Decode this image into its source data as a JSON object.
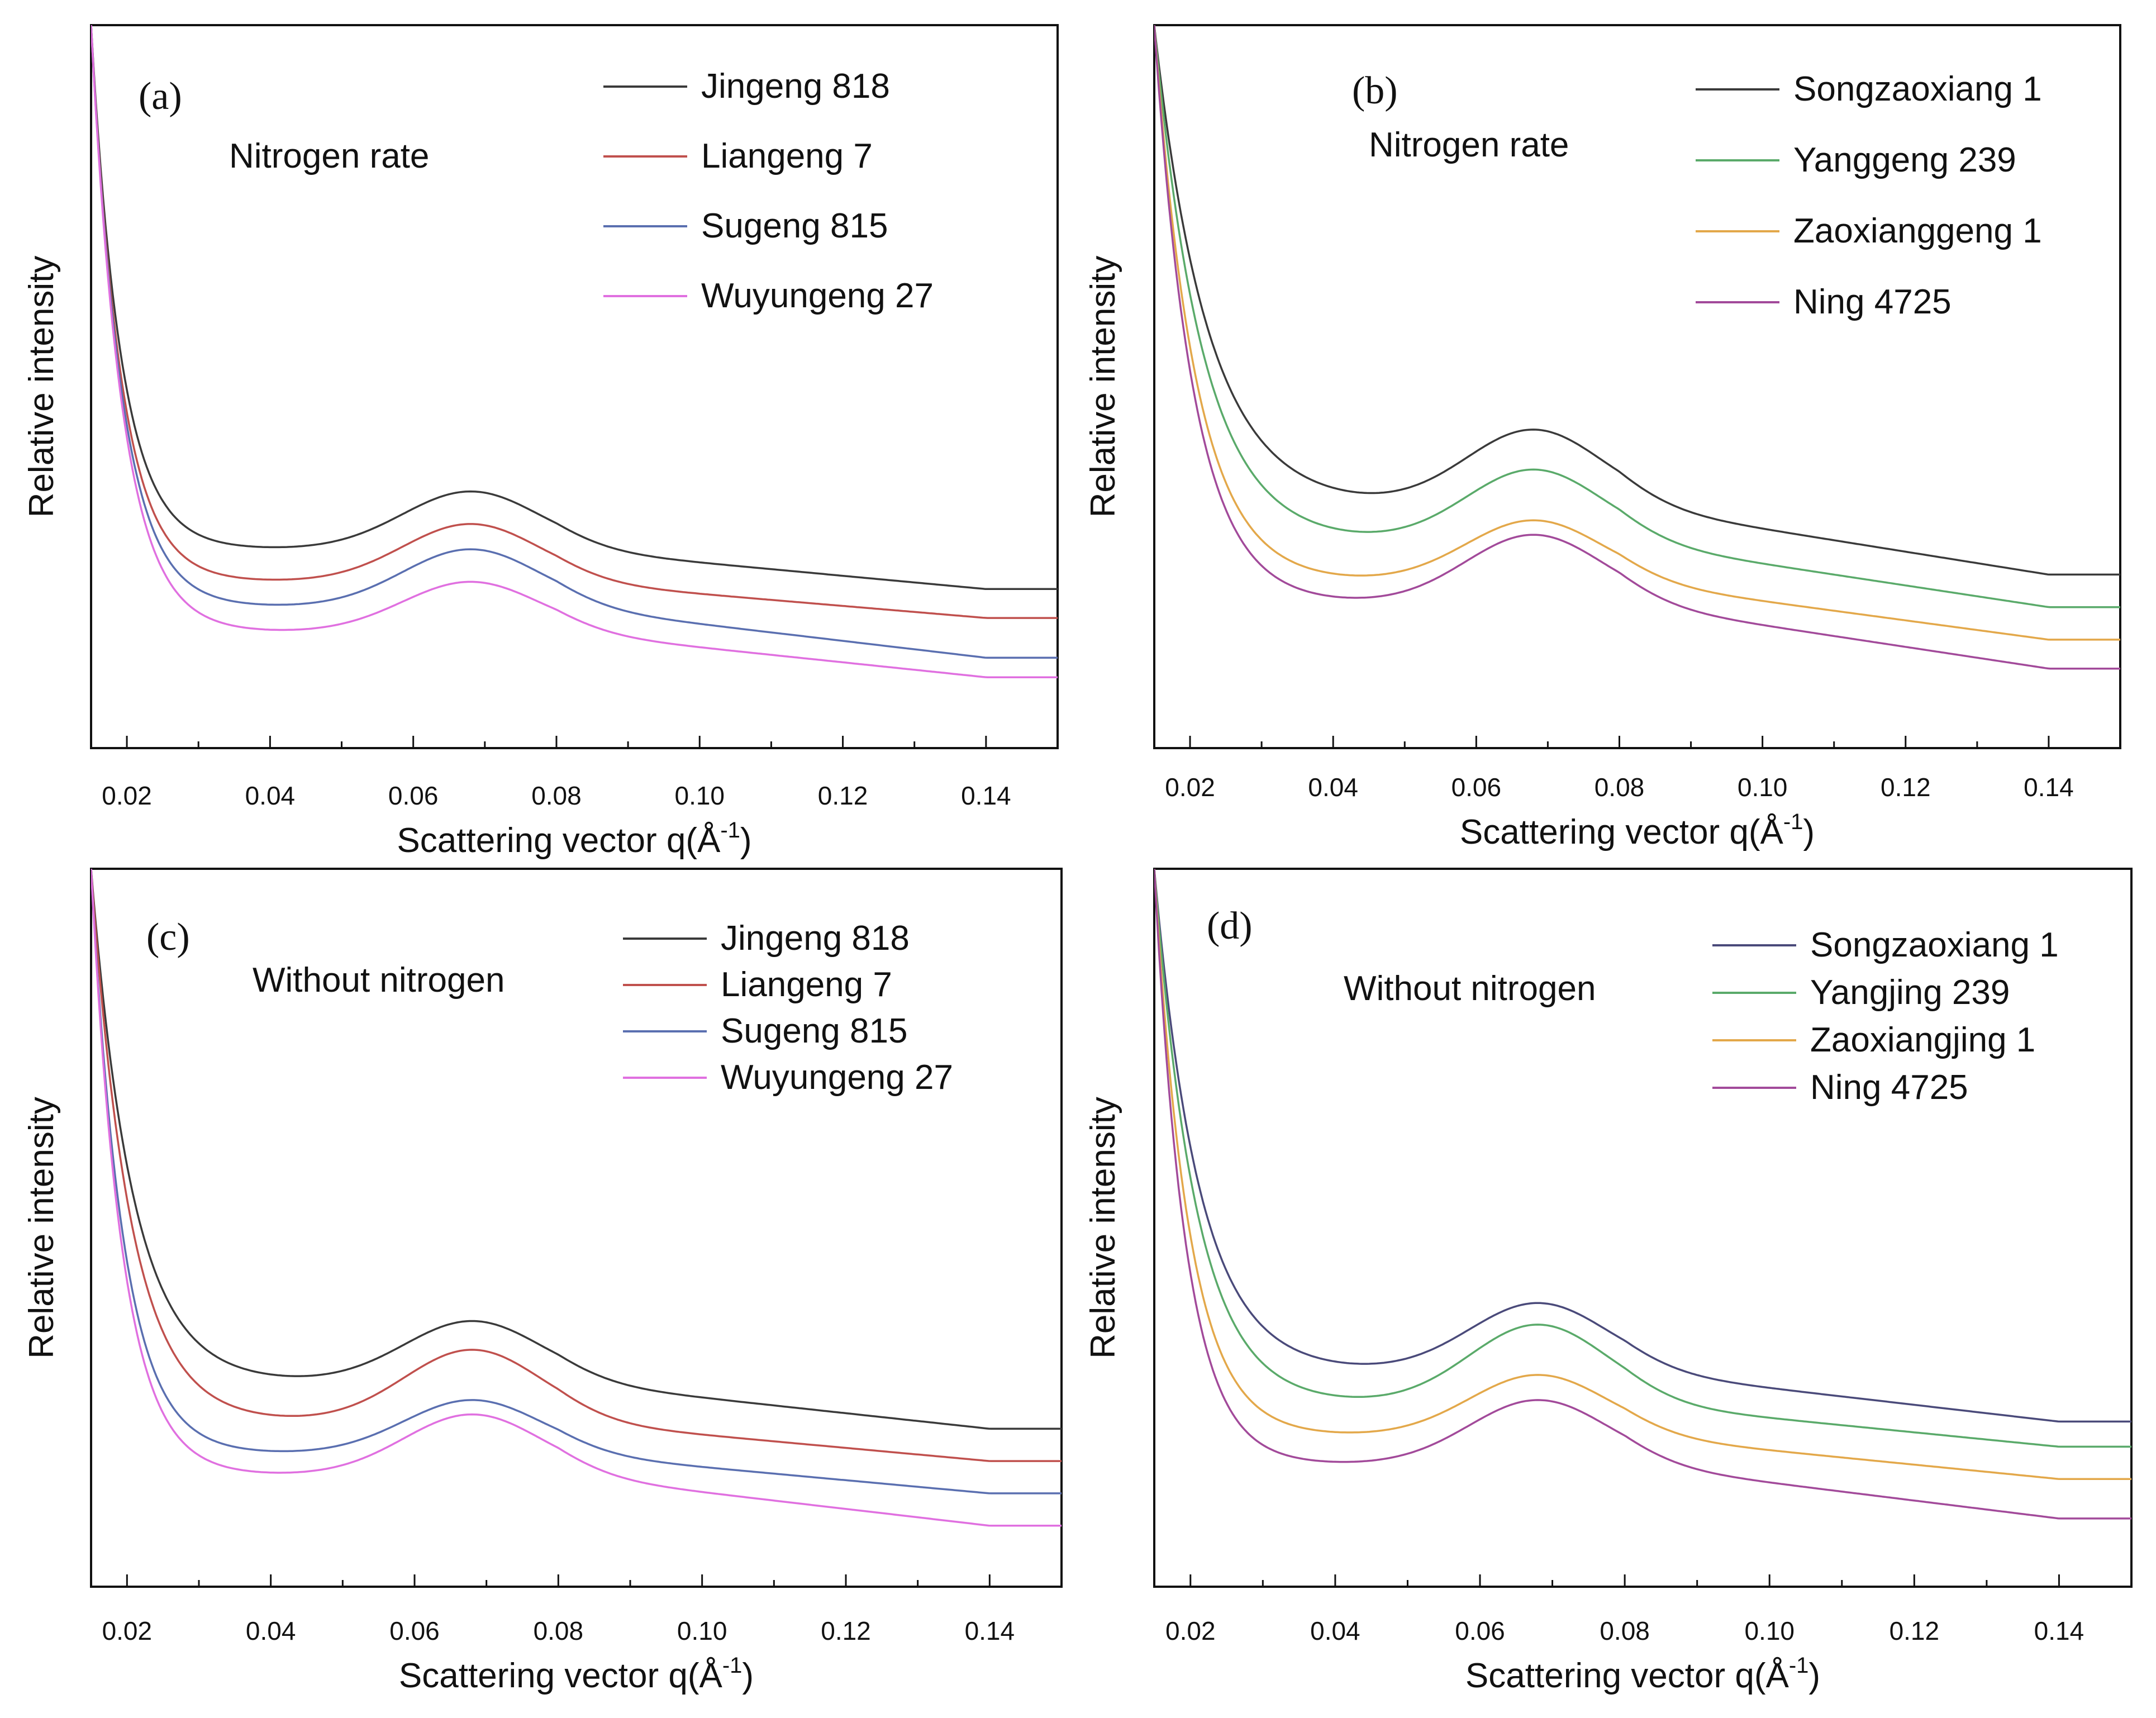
{
  "chart_data": [
    {
      "panel": "(a)",
      "type": "line",
      "subtitle": "Nitrogen rate",
      "xlabel": "Scattering vector q(Å",
      "xlabel_sup": "-1",
      "xlabel_end": ")",
      "ylabel": "Relative intensity",
      "xlim": [
        0.015,
        0.15
      ],
      "ylim": [
        0,
        10
      ],
      "xticks": [
        "0.02",
        "0.04",
        "0.06",
        "0.08",
        "0.10",
        "0.12",
        "0.14"
      ],
      "xtick_values": [
        0.02,
        0.04,
        0.06,
        0.08,
        0.1,
        0.12,
        0.14
      ],
      "legend_position": "top-right",
      "series": [
        {
          "name": "Jingeng 818",
          "color": "#3a3a3a",
          "base": 2.2,
          "dip": 2.75,
          "peak": 3.55,
          "top": 10.0,
          "decay": 0.0042
        },
        {
          "name": "Liangeng 7",
          "color": "#c0504d",
          "base": 1.8,
          "dip": 2.3,
          "peak": 3.1,
          "top": 10.0,
          "decay": 0.0042
        },
        {
          "name": "Sugeng 815",
          "color": "#5a6fb0",
          "base": 1.25,
          "dip": 1.95,
          "peak": 2.75,
          "top": 10.0,
          "decay": 0.0043
        },
        {
          "name": "Wuyungeng 27",
          "color": "#e070e0",
          "base": 0.98,
          "dip": 1.6,
          "peak": 2.3,
          "top": 10.0,
          "decay": 0.0044
        }
      ]
    },
    {
      "panel": "(b)",
      "type": "line",
      "subtitle": "Nitrogen rate",
      "xlabel": "Scattering vector q(Å",
      "xlabel_sup": "-1",
      "xlabel_end": ")",
      "ylabel": "Relative intensity",
      "xlim": [
        0.015,
        0.15
      ],
      "ylim": [
        0,
        10
      ],
      "xticks": [
        "0.02",
        "0.04",
        "0.06",
        "0.08",
        "0.10",
        "0.12",
        "0.14"
      ],
      "xtick_values": [
        0.02,
        0.04,
        0.06,
        0.08,
        0.1,
        0.12,
        0.14
      ],
      "legend_position": "top-right",
      "series": [
        {
          "name": "Songzaoxiang 1",
          "color": "#3a3a3a",
          "base": 2.4,
          "dip": 3.35,
          "peak": 4.4,
          "top": 10.0,
          "decay": 0.0075
        },
        {
          "name": "Yanggeng 239",
          "color": "#5aaa6a",
          "base": 1.95,
          "dip": 2.85,
          "peak": 3.85,
          "top": 10.0,
          "decay": 0.0068
        },
        {
          "name": "Zaoxianggeng 1",
          "color": "#e3a84a",
          "base": 1.5,
          "dip": 2.3,
          "peak": 3.15,
          "top": 10.0,
          "decay": 0.0058
        },
        {
          "name": "Ning 4725",
          "color": "#a24a9a",
          "base": 1.1,
          "dip": 2.0,
          "peak": 2.95,
          "top": 10.0,
          "decay": 0.0055
        }
      ]
    },
    {
      "panel": "(c)",
      "type": "line",
      "subtitle": "Without nitrogen",
      "xlabel": "Scattering vector q(Å",
      "xlabel_sup": "-1",
      "xlabel_end": ")",
      "ylabel": "Relative intensity",
      "xlim": [
        0.015,
        0.15
      ],
      "ylim": [
        0,
        10
      ],
      "xticks": [
        "0.02",
        "0.04",
        "0.06",
        "0.08",
        "0.10",
        "0.12",
        "0.14"
      ],
      "xtick_values": [
        0.02,
        0.04,
        0.06,
        0.08,
        0.1,
        0.12,
        0.14
      ],
      "legend_position": "top-right",
      "series": [
        {
          "name": "Jingeng 818",
          "color": "#3a3a3a",
          "base": 2.2,
          "dip": 2.85,
          "peak": 3.7,
          "top": 10.0,
          "decay": 0.0058
        },
        {
          "name": "Liangeng 7",
          "color": "#c0504d",
          "base": 1.75,
          "dip": 2.3,
          "peak": 3.3,
          "top": 10.0,
          "decay": 0.0055
        },
        {
          "name": "Sugeng 815",
          "color": "#5a6fb0",
          "base": 1.3,
          "dip": 1.85,
          "peak": 2.6,
          "top": 10.0,
          "decay": 0.0045
        },
        {
          "name": "Wuyungeng 27",
          "color": "#e070e0",
          "base": 0.85,
          "dip": 1.55,
          "peak": 2.4,
          "top": 10.0,
          "decay": 0.0044
        }
      ]
    },
    {
      "panel": "(d)",
      "type": "line",
      "subtitle": "Without nitrogen",
      "xlabel": "Scattering vector q(Å",
      "xlabel_sup": "-1",
      "xlabel_end": ")",
      "ylabel": "Relative intensity",
      "xlim": [
        0.015,
        0.15
      ],
      "ylim": [
        0,
        10
      ],
      "xticks": [
        "0.02",
        "0.04",
        "0.06",
        "0.08",
        "0.10",
        "0.12",
        "0.14"
      ],
      "xtick_values": [
        0.02,
        0.04,
        0.06,
        0.08,
        0.1,
        0.12,
        0.14
      ],
      "legend_position": "top-right",
      "series": [
        {
          "name": "Songzaoxiang 1",
          "color": "#4a4a7a",
          "base": 2.3,
          "dip": 3.0,
          "peak": 3.95,
          "top": 10.0,
          "decay": 0.0062
        },
        {
          "name": "Yangjing 239",
          "color": "#5aaa6a",
          "base": 1.95,
          "dip": 2.55,
          "peak": 3.65,
          "top": 10.0,
          "decay": 0.0058
        },
        {
          "name": "Zaoxiangjing 1",
          "color": "#e3a84a",
          "base": 1.5,
          "dip": 2.1,
          "peak": 2.95,
          "top": 10.0,
          "decay": 0.0048
        },
        {
          "name": "Ning 4725",
          "color": "#a24a9a",
          "base": 0.95,
          "dip": 1.7,
          "peak": 2.6,
          "top": 10.0,
          "decay": 0.0044
        }
      ]
    }
  ]
}
